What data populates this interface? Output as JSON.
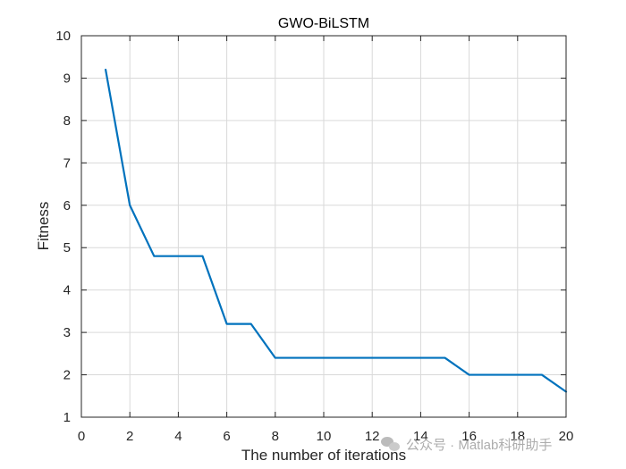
{
  "chart_data": {
    "type": "line",
    "title": "GWO-BiLSTM",
    "xlabel": "The number of iterations",
    "ylabel": "Fitness",
    "xlim": [
      0,
      20
    ],
    "ylim": [
      1,
      10
    ],
    "xticks": [
      0,
      2,
      4,
      6,
      8,
      10,
      12,
      14,
      16,
      18,
      20
    ],
    "yticks": [
      1,
      2,
      3,
      4,
      5,
      6,
      7,
      8,
      9,
      10
    ],
    "grid": true,
    "series": [
      {
        "x": [
          1,
          2,
          3,
          4,
          5,
          6,
          7,
          8,
          9,
          10,
          11,
          12,
          13,
          14,
          15,
          16,
          17,
          18,
          19,
          20
        ],
        "y": [
          9.2,
          6.0,
          4.8,
          4.8,
          4.8,
          3.2,
          3.2,
          2.4,
          2.4,
          2.4,
          2.4,
          2.4,
          2.4,
          2.4,
          2.4,
          2.0,
          2.0,
          2.0,
          2.0,
          1.6
        ],
        "color": "#0072bd"
      }
    ]
  },
  "watermark": {
    "icon": "wechat-icon",
    "text": "公众号 · Matlab科研助手"
  },
  "colors": {
    "axis": "#262626",
    "grid": "#d9d9d9",
    "line": "#0072bd"
  }
}
